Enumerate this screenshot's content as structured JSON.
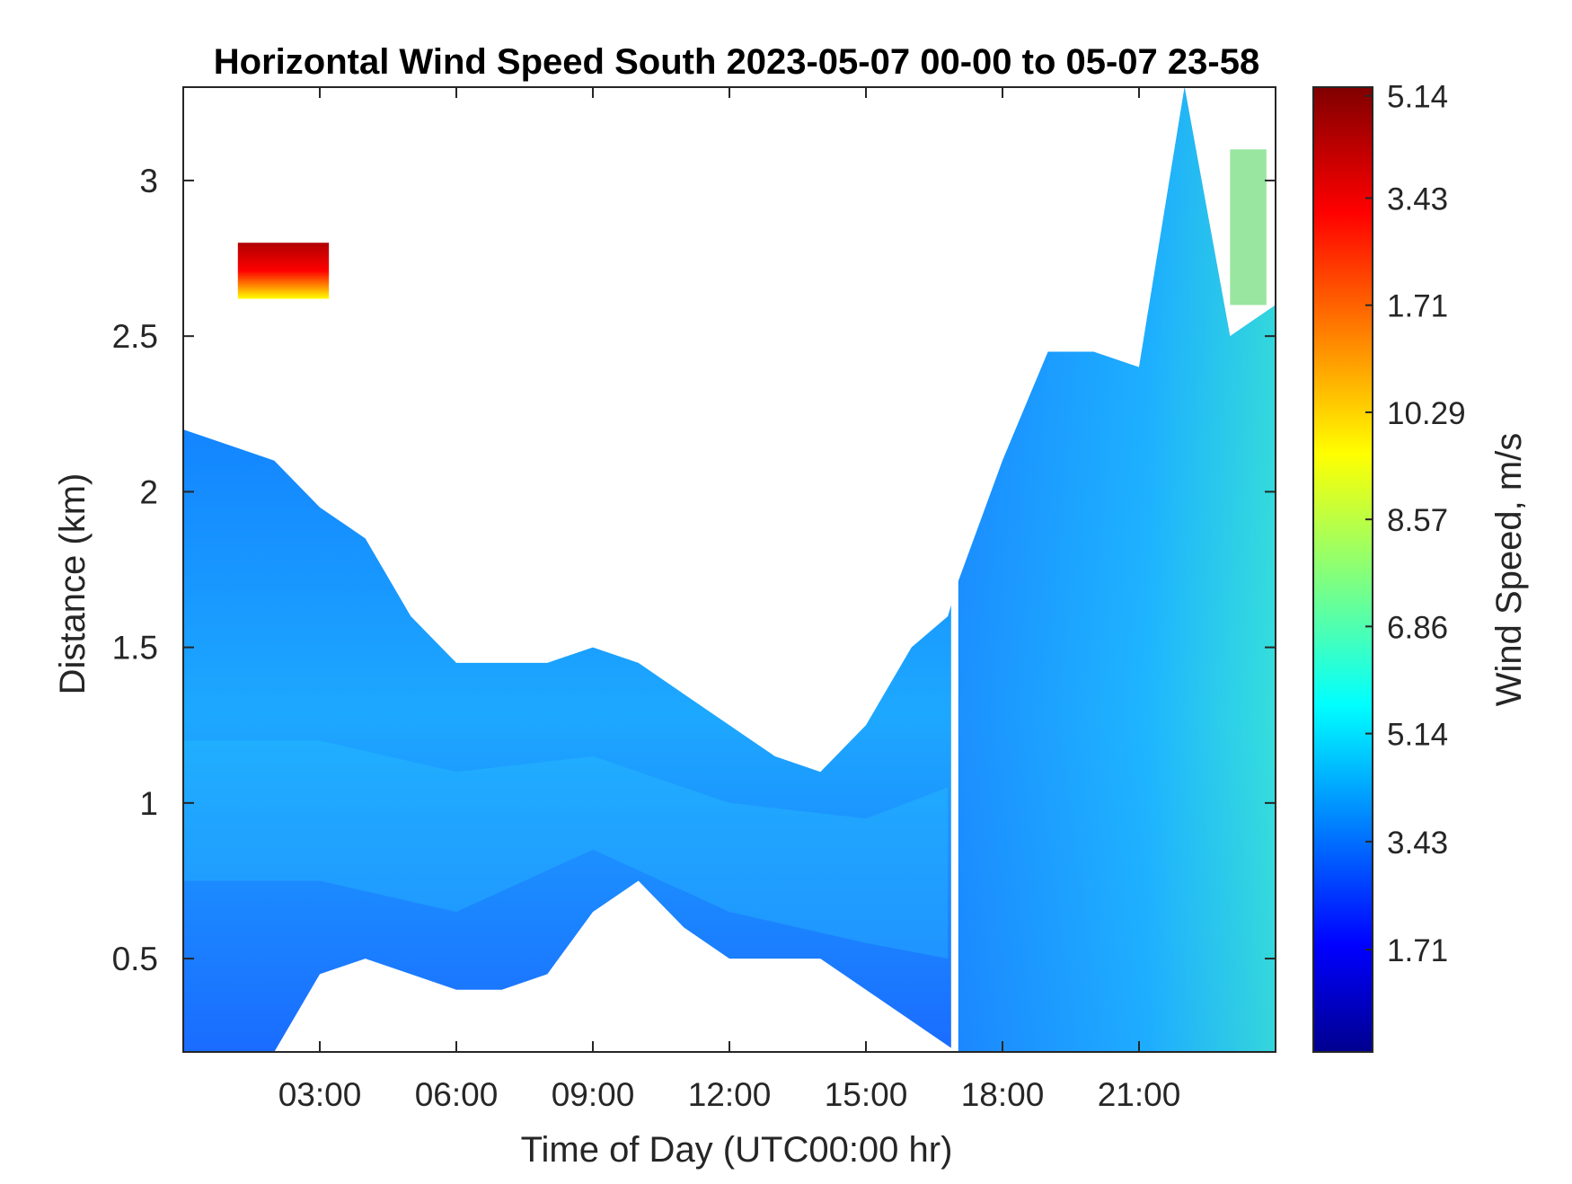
{
  "chart_data": {
    "type": "heatmap",
    "title": "Horizontal Wind Speed South 2023-05-07 00-00 to 05-07 23-58",
    "xlabel": "Time of Day (UTC00:00 hr)",
    "ylabel": "Distance (km)",
    "colorbar_label": "Wind Speed, m/s",
    "colormap": "jet",
    "xlim_hours": [
      0,
      24
    ],
    "ylim_km": [
      0.2,
      3.3
    ],
    "x_ticks": [
      {
        "hour": 3,
        "label": "03:00"
      },
      {
        "hour": 6,
        "label": "06:00"
      },
      {
        "hour": 9,
        "label": "09:00"
      },
      {
        "hour": 12,
        "label": "12:00"
      },
      {
        "hour": 15,
        "label": "15:00"
      },
      {
        "hour": 18,
        "label": "18:00"
      },
      {
        "hour": 21,
        "label": "21:00"
      }
    ],
    "y_ticks": [
      {
        "km": 0.5,
        "label": "0.5"
      },
      {
        "km": 1,
        "label": "1"
      },
      {
        "km": 1.5,
        "label": "1.5"
      },
      {
        "km": 2,
        "label": "2"
      },
      {
        "km": 2.5,
        "label": "2.5"
      },
      {
        "km": 3,
        "label": "3"
      }
    ],
    "colorbar_ticks": [
      {
        "label": "1.71",
        "frac": 0.106
      },
      {
        "label": "3.43",
        "frac": 0.218
      },
      {
        "label": "5.14",
        "frac": 0.33
      },
      {
        "label": "6.86",
        "frac": 0.441
      },
      {
        "label": "8.57",
        "frac": 0.552
      },
      {
        "label": "10.29",
        "frac": 0.663
      },
      {
        "label": "1.71",
        "frac": 0.774
      },
      {
        "label": "3.43",
        "frac": 0.885
      },
      {
        "label": "5.14",
        "frac": 0.991
      }
    ],
    "data_region": {
      "description_units": "hour / km",
      "upper_boundary_km": [
        [
          0,
          2.2
        ],
        [
          1,
          2.15
        ],
        [
          2,
          2.1
        ],
        [
          3,
          1.95
        ],
        [
          4,
          1.85
        ],
        [
          5,
          1.6
        ],
        [
          6,
          1.45
        ],
        [
          7,
          1.45
        ],
        [
          8,
          1.45
        ],
        [
          9,
          1.5
        ],
        [
          10,
          1.45
        ],
        [
          11,
          1.35
        ],
        [
          12,
          1.25
        ],
        [
          13,
          1.15
        ],
        [
          14,
          1.1
        ],
        [
          15,
          1.25
        ],
        [
          16,
          1.5
        ],
        [
          16.8,
          1.6
        ],
        [
          17,
          1.7
        ],
        [
          18,
          2.1
        ],
        [
          19,
          2.45
        ],
        [
          20,
          2.45
        ],
        [
          21,
          2.4
        ],
        [
          22,
          3.3
        ],
        [
          23,
          2.5
        ],
        [
          24,
          2.6
        ]
      ],
      "lower_boundary_km": [
        [
          0,
          0.2
        ],
        [
          2,
          0.2
        ],
        [
          3,
          0.45
        ],
        [
          4,
          0.5
        ],
        [
          5,
          0.45
        ],
        [
          6,
          0.4
        ],
        [
          7,
          0.4
        ],
        [
          8,
          0.45
        ],
        [
          9,
          0.65
        ],
        [
          10,
          0.75
        ],
        [
          11,
          0.6
        ],
        [
          12,
          0.5
        ],
        [
          13,
          0.5
        ],
        [
          14,
          0.5
        ],
        [
          15,
          0.4
        ],
        [
          16,
          0.3
        ],
        [
          17,
          0.2
        ],
        [
          24,
          0.2
        ]
      ],
      "gap_hour": 16.95,
      "dominant_speed_ms": 4.5,
      "patches": [
        {
          "hour_range": [
            1.2,
            3.2
          ],
          "km_range": [
            2.62,
            2.8
          ],
          "speed_ms": 13.5
        },
        {
          "hour_range": [
            23.0,
            23.8
          ],
          "km_range": [
            2.6,
            3.1
          ],
          "speed_ms": 9.5
        }
      ]
    }
  }
}
